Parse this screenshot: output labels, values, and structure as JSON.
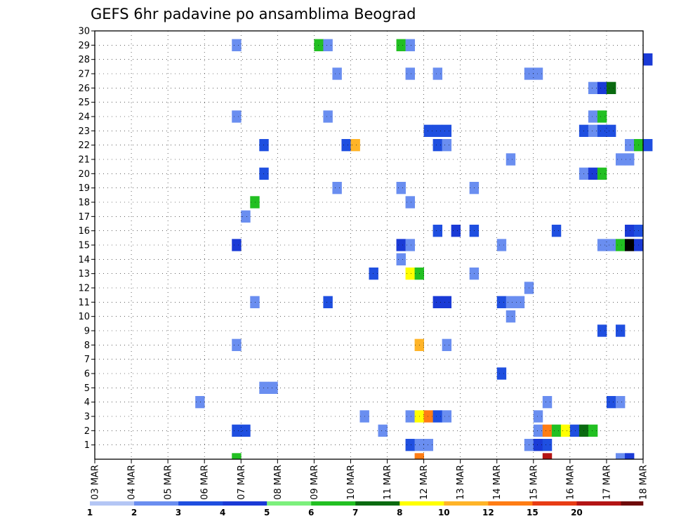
{
  "chart_data": {
    "type": "heatmap",
    "title": "GEFS 6hr padavine po ansamblima Beograd",
    "xlabel": "",
    "ylabel": "",
    "x_ticks": [
      "03 MAR",
      "04 MAR",
      "05 MAR",
      "06 MAR",
      "07 MAR",
      "08 MAR",
      "09 MAR",
      "10 MAR",
      "11 MAR",
      "12 MAR",
      "13 MAR",
      "14 MAR",
      "15 MAR",
      "16 MAR",
      "17 MAR",
      "18 MAR"
    ],
    "y_ticks": [
      1,
      2,
      3,
      4,
      5,
      6,
      7,
      8,
      9,
      10,
      11,
      12,
      13,
      14,
      15,
      16,
      17,
      18,
      19,
      20,
      21,
      22,
      23,
      24,
      25,
      26,
      27,
      28,
      29,
      30
    ],
    "x_unit": "6h steps since 03 MAR 00Z",
    "xlim": [
      0,
      60
    ],
    "ylim": [
      0,
      30
    ],
    "grid": true,
    "colorbar": {
      "labels": [
        "1",
        "2",
        "3",
        "4",
        "5",
        "6",
        "7",
        "8",
        "10",
        "12",
        "15",
        "20"
      ],
      "colors": [
        "#b4c6f5",
        "#6a8ef0",
        "#1f4fe0",
        "#1a3ad6",
        "#7cf07c",
        "#22c022",
        "#0a6a10",
        "#ffff00",
        "#ffb428",
        "#ff7d14",
        "#e83c14",
        "#b41414",
        "#6e0a0a"
      ]
    },
    "points": [
      [
        15.5,
        0,
        5
      ],
      [
        35.5,
        0,
        9
      ],
      [
        49.5,
        0,
        11
      ],
      [
        57.5,
        0,
        1
      ],
      [
        58.5,
        0,
        3
      ],
      [
        34.5,
        1,
        2
      ],
      [
        35.5,
        1,
        1
      ],
      [
        36.5,
        1,
        1
      ],
      [
        47.5,
        1,
        1
      ],
      [
        48.5,
        1,
        3
      ],
      [
        49.5,
        1,
        2
      ],
      [
        15.5,
        2,
        2
      ],
      [
        16.5,
        2,
        2
      ],
      [
        31.5,
        2,
        1
      ],
      [
        48.5,
        2,
        1
      ],
      [
        49.5,
        2,
        9
      ],
      [
        50.5,
        2,
        5
      ],
      [
        51.5,
        2,
        7
      ],
      [
        52.5,
        2,
        2
      ],
      [
        53.5,
        2,
        6
      ],
      [
        54.5,
        2,
        5
      ],
      [
        29.5,
        3,
        1
      ],
      [
        34.5,
        3,
        1
      ],
      [
        35.5,
        3,
        7
      ],
      [
        36.5,
        3,
        9
      ],
      [
        37.5,
        3,
        2
      ],
      [
        38.5,
        3,
        1
      ],
      [
        48.5,
        3,
        1
      ],
      [
        11.5,
        4,
        1
      ],
      [
        49.5,
        4,
        1
      ],
      [
        56.5,
        4,
        2
      ],
      [
        57.5,
        4,
        1
      ],
      [
        18.5,
        5,
        1
      ],
      [
        19.5,
        5,
        1
      ],
      [
        44.5,
        6,
        2
      ],
      [
        15.5,
        8,
        1
      ],
      [
        35.5,
        8,
        8
      ],
      [
        38.5,
        8,
        1
      ],
      [
        55.5,
        9,
        2
      ],
      [
        57.5,
        9,
        2
      ],
      [
        45.5,
        10,
        1
      ],
      [
        17.5,
        11,
        1
      ],
      [
        25.5,
        11,
        2
      ],
      [
        37.5,
        11,
        3
      ],
      [
        38.5,
        11,
        3
      ],
      [
        44.5,
        11,
        2
      ],
      [
        45.5,
        11,
        1
      ],
      [
        46.5,
        11,
        1
      ],
      [
        47.5,
        12,
        1
      ],
      [
        30.5,
        13,
        2
      ],
      [
        34.5,
        13,
        7
      ],
      [
        35.5,
        13,
        5
      ],
      [
        41.5,
        13,
        1
      ],
      [
        33.5,
        14,
        1
      ],
      [
        15.5,
        15,
        3
      ],
      [
        33.5,
        15,
        3
      ],
      [
        34.5,
        15,
        1
      ],
      [
        44.5,
        15,
        1
      ],
      [
        55.5,
        15,
        1
      ],
      [
        56.5,
        15,
        1
      ],
      [
        57.5,
        15,
        5
      ],
      [
        58.5,
        15,
        13
      ],
      [
        59.5,
        15,
        3
      ],
      [
        37.5,
        16,
        2
      ],
      [
        39.5,
        16,
        3
      ],
      [
        41.5,
        16,
        2
      ],
      [
        50.5,
        16,
        2
      ],
      [
        58.5,
        16,
        3
      ],
      [
        59.5,
        16,
        2
      ],
      [
        16.5,
        17,
        1
      ],
      [
        17.5,
        18,
        5
      ],
      [
        34.5,
        18,
        1
      ],
      [
        26.5,
        19,
        1
      ],
      [
        33.5,
        19,
        1
      ],
      [
        41.5,
        19,
        1
      ],
      [
        18.5,
        20,
        2
      ],
      [
        53.5,
        20,
        1
      ],
      [
        54.5,
        20,
        3
      ],
      [
        55.5,
        20,
        5
      ],
      [
        45.5,
        21,
        1
      ],
      [
        57.5,
        21,
        1
      ],
      [
        58.5,
        21,
        1
      ],
      [
        18.5,
        22,
        2
      ],
      [
        27.5,
        22,
        2
      ],
      [
        28.5,
        22,
        8
      ],
      [
        37.5,
        22,
        2
      ],
      [
        38.5,
        22,
        1
      ],
      [
        58.5,
        22,
        1
      ],
      [
        59.5,
        22,
        5
      ],
      [
        60.5,
        22,
        2
      ],
      [
        36.5,
        23,
        2
      ],
      [
        37.5,
        23,
        2
      ],
      [
        38.5,
        23,
        2
      ],
      [
        53.5,
        23,
        2
      ],
      [
        54.5,
        23,
        1
      ],
      [
        55.5,
        23,
        2
      ],
      [
        56.5,
        23,
        2
      ],
      [
        15.5,
        24,
        1
      ],
      [
        25.5,
        24,
        1
      ],
      [
        54.5,
        24,
        1
      ],
      [
        55.5,
        24,
        5
      ],
      [
        54.5,
        26,
        1
      ],
      [
        55.5,
        26,
        3
      ],
      [
        56.5,
        26,
        6
      ],
      [
        26.5,
        27,
        1
      ],
      [
        34.5,
        27,
        1
      ],
      [
        37.5,
        27,
        1
      ],
      [
        47.5,
        27,
        1
      ],
      [
        48.5,
        27,
        1
      ],
      [
        60.5,
        28,
        3
      ],
      [
        15.5,
        29,
        1
      ],
      [
        24.5,
        29,
        5
      ],
      [
        25.5,
        29,
        1
      ],
      [
        33.5,
        29,
        5
      ],
      [
        34.5,
        29,
        1
      ]
    ]
  }
}
